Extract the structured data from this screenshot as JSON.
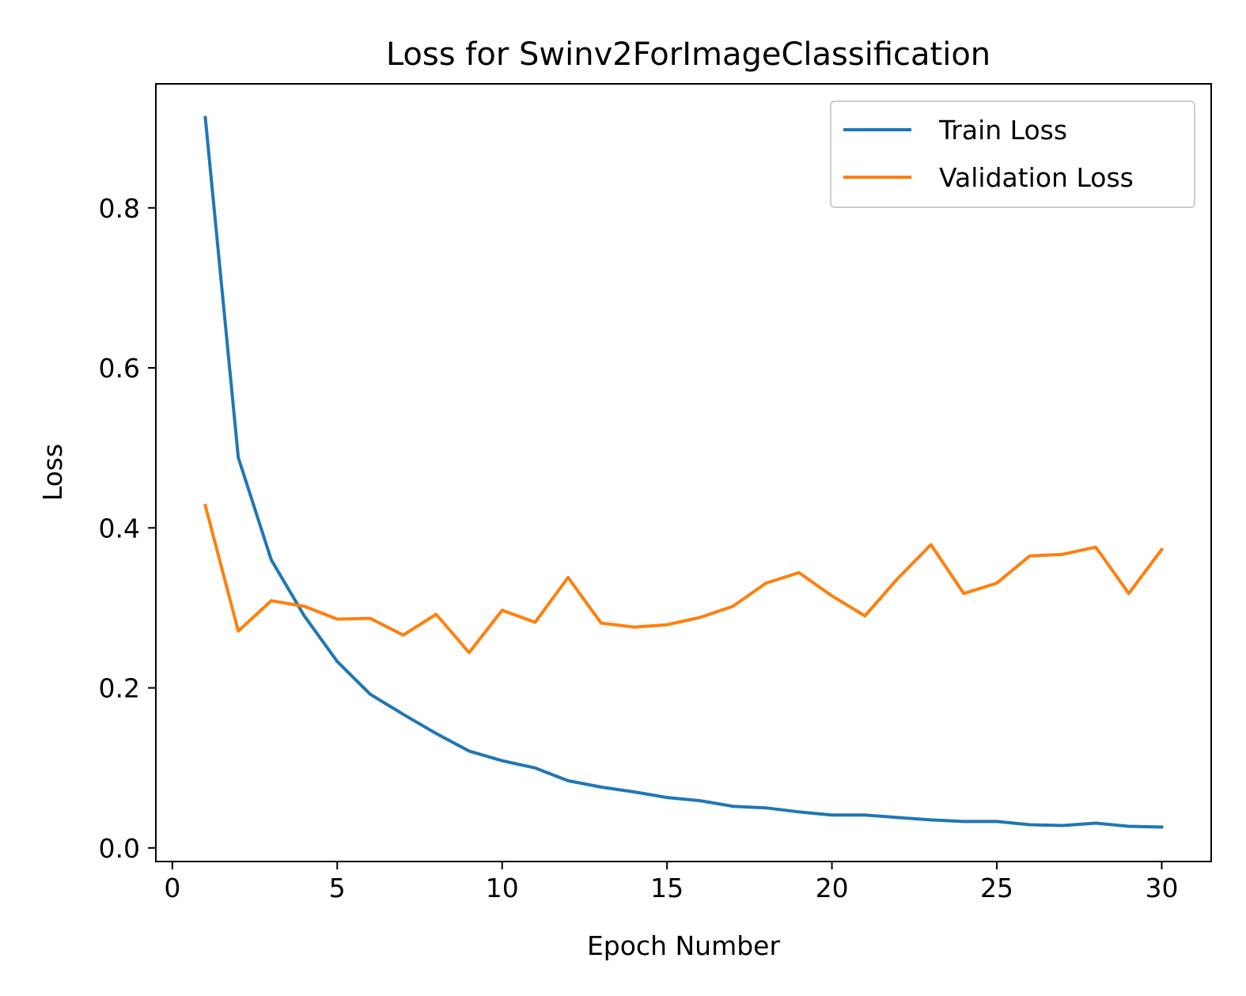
{
  "chart_data": {
    "type": "line",
    "title": "Loss for Swinv2ForImageClassification",
    "xlabel": "Epoch Number",
    "ylabel": "Loss",
    "xlim": [
      -0.5,
      31.5
    ],
    "ylim": [
      -0.017,
      0.955
    ],
    "xticks": [
      0,
      5,
      10,
      15,
      20,
      25,
      30
    ],
    "yticks": [
      0.0,
      0.2,
      0.4,
      0.6,
      0.8
    ],
    "xtick_labels": [
      "0",
      "5",
      "10",
      "15",
      "20",
      "25",
      "30"
    ],
    "ytick_labels": [
      "0.0",
      "0.2",
      "0.4",
      "0.6",
      "0.8"
    ],
    "grid": false,
    "legend_position": "top-right",
    "x": [
      1,
      2,
      3,
      4,
      5,
      6,
      7,
      8,
      9,
      10,
      11,
      12,
      13,
      14,
      15,
      16,
      17,
      18,
      19,
      20,
      21,
      22,
      23,
      24,
      25,
      26,
      27,
      28,
      29,
      30
    ],
    "series": [
      {
        "name": "Train Loss",
        "color": "#1f77b4",
        "values": [
          0.913,
          0.488,
          0.36,
          0.29,
          0.233,
          0.192,
          0.167,
          0.143,
          0.121,
          0.109,
          0.1,
          0.084,
          0.076,
          0.07,
          0.063,
          0.059,
          0.052,
          0.05,
          0.045,
          0.041,
          0.041,
          0.038,
          0.035,
          0.033,
          0.033,
          0.029,
          0.028,
          0.031,
          0.027,
          0.026
        ]
      },
      {
        "name": "Validation Loss",
        "color": "#ff7f0e",
        "values": [
          0.428,
          0.271,
          0.309,
          0.302,
          0.286,
          0.287,
          0.266,
          0.292,
          0.244,
          0.297,
          0.282,
          0.338,
          0.281,
          0.276,
          0.279,
          0.288,
          0.302,
          0.331,
          0.344,
          0.315,
          0.29,
          0.337,
          0.379,
          0.318,
          0.331,
          0.365,
          0.367,
          0.376,
          0.318,
          0.373
        ]
      }
    ]
  }
}
